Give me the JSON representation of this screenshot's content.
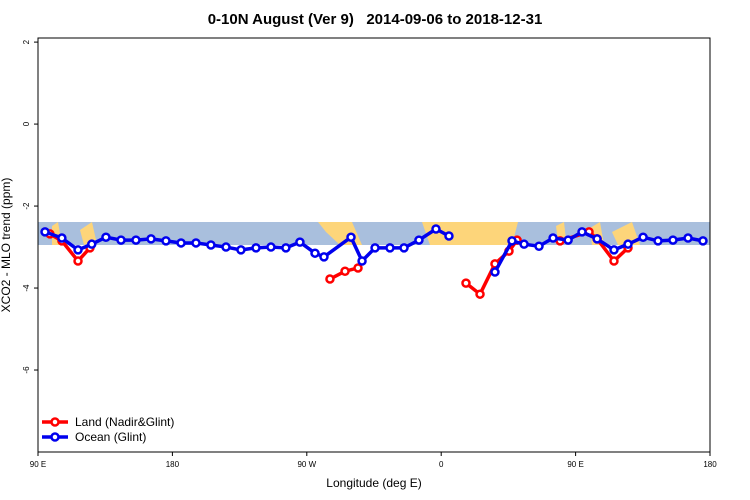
{
  "chart_data": {
    "type": "line",
    "title": "0-10N August (Ver 9)   2014-09-06 to 2018-12-31",
    "x_label": "Longitude (deg E)",
    "y_label": "XCO2 - MLO trend (ppm)",
    "xlim": [
      90,
      540
    ],
    "xticks": [
      {
        "value": 90,
        "label": "90 E"
      },
      180,
      {
        "value": 270,
        "label": "90 W"
      },
      {
        "value": 360,
        "label": "0"
      },
      {
        "value": 450,
        "label": "90 E"
      },
      {
        "value": 540,
        "label": "180"
      }
    ],
    "ylim": [
      -8,
      2.1
    ],
    "yticks": [
      2,
      0,
      -2,
      -4,
      -6
    ],
    "legend": "bottom-left",
    "series": [
      {
        "name": "Land (Nadir&Glint)",
        "color": "#ff0000",
        "x": [
          98,
          106,
          116.8,
          124.8,
          null,
          285.5,
          295.6,
          304.3,
          null,
          376.6,
          386,
          396,
          405.4,
          410.8,
          null,
          439.6,
          459,
          464.4,
          475.7,
          485.1
        ],
        "values": [
          -2.68,
          -2.85,
          -3.34,
          -3.02,
          null,
          -3.78,
          -3.59,
          -3.51,
          null,
          -3.88,
          -4.15,
          -3.41,
          -3.1,
          -2.83,
          null,
          -2.85,
          -2.63,
          -2.8,
          -3.34,
          -3.02
        ]
      },
      {
        "name": "Ocean (Glint)",
        "color": "#0000ee",
        "x": [
          94.7,
          106,
          116.8,
          126,
          135.5,
          145.6,
          155.6,
          165.7,
          175.7,
          185.8,
          195.8,
          205.8,
          215.9,
          225.9,
          236,
          246,
          256,
          265.4,
          275.5,
          281.5,
          299.6,
          307,
          315.7,
          325.7,
          335.1,
          345.1,
          356.5,
          365.2,
          null,
          396,
          407.4,
          415.5,
          425.5,
          434.9,
          445,
          454.3,
          464.4,
          475.7,
          485.1,
          495.2,
          505.2,
          515.2,
          525.3,
          535.3
        ],
        "values": [
          -2.63,
          -2.78,
          -3.07,
          -2.93,
          -2.76,
          -2.83,
          -2.83,
          -2.8,
          -2.85,
          -2.9,
          -2.9,
          -2.95,
          -3.0,
          -3.07,
          -3.02,
          -3.0,
          -3.02,
          -2.88,
          -3.15,
          -3.24,
          -2.76,
          -3.34,
          -3.02,
          -3.02,
          -3.02,
          -2.83,
          -2.56,
          -2.73,
          null,
          -3.61,
          -2.85,
          -2.93,
          -2.98,
          -2.78,
          -2.83,
          -2.63,
          -2.8,
          -3.07,
          -2.93,
          -2.76,
          -2.85,
          -2.83,
          -2.78,
          -2.85
        ]
      }
    ]
  }
}
